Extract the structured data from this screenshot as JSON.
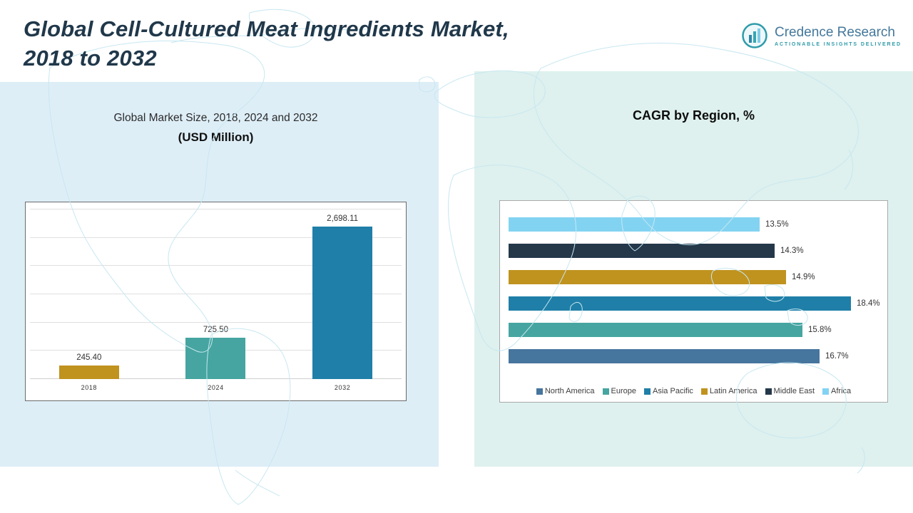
{
  "header": {
    "title_line1": "Global Cell-Cultured Meat Ingredients Market,",
    "title_line2": "2018 to 2032"
  },
  "logo": {
    "name": "Credence Research",
    "tagline": "Actionable Insights Delivered",
    "accent_color": "#2E9BAA",
    "text_color": "#44789B"
  },
  "left_panel": {
    "subtitle": "Global Market Size, 2018, 2024 and 2032",
    "unit_label": "(USD Million)"
  },
  "right_panel": {
    "title": "CAGR by Region, %"
  },
  "chart_data": [
    {
      "type": "bar",
      "orientation": "vertical",
      "title": "Global Market Size, 2018, 2024 and 2032 (USD Million)",
      "categories": [
        "2018",
        "2024",
        "2032"
      ],
      "values": [
        245.4,
        725.5,
        2698.11
      ],
      "labels": [
        "245.40",
        "725.50",
        "2,698.11"
      ],
      "colors": [
        "#C0931F",
        "#46A5A0",
        "#1F7FA8"
      ],
      "xlabel": "",
      "ylabel": "USD Million",
      "ylim": [
        0,
        3000
      ],
      "grid": true,
      "gridline_count": 6
    },
    {
      "type": "bar",
      "orientation": "horizontal",
      "title": "CAGR by Region, %",
      "categories": [
        "Africa",
        "Middle East",
        "Latin America",
        "Asia Pacific",
        "Europe",
        "North America"
      ],
      "values": [
        13.5,
        14.3,
        14.9,
        18.4,
        15.8,
        16.7
      ],
      "labels": [
        "13.5%",
        "14.3%",
        "14.9%",
        "18.4%",
        "15.8%",
        "16.7%"
      ],
      "colors": [
        "#82D3F2",
        "#24384A",
        "#C0931F",
        "#1F7FA8",
        "#46A5A0",
        "#46759E"
      ],
      "xlim": [
        0,
        20
      ],
      "grid": false,
      "legend_position": "bottom",
      "legend": [
        {
          "label": "North America",
          "color": "#46759E"
        },
        {
          "label": "Europe",
          "color": "#46A5A0"
        },
        {
          "label": "Asia Pacific",
          "color": "#1F7FA8"
        },
        {
          "label": "Latin America",
          "color": "#C0931F"
        },
        {
          "label": "Middle East",
          "color": "#24384A"
        },
        {
          "label": "Africa",
          "color": "#82D3F2"
        }
      ]
    }
  ]
}
